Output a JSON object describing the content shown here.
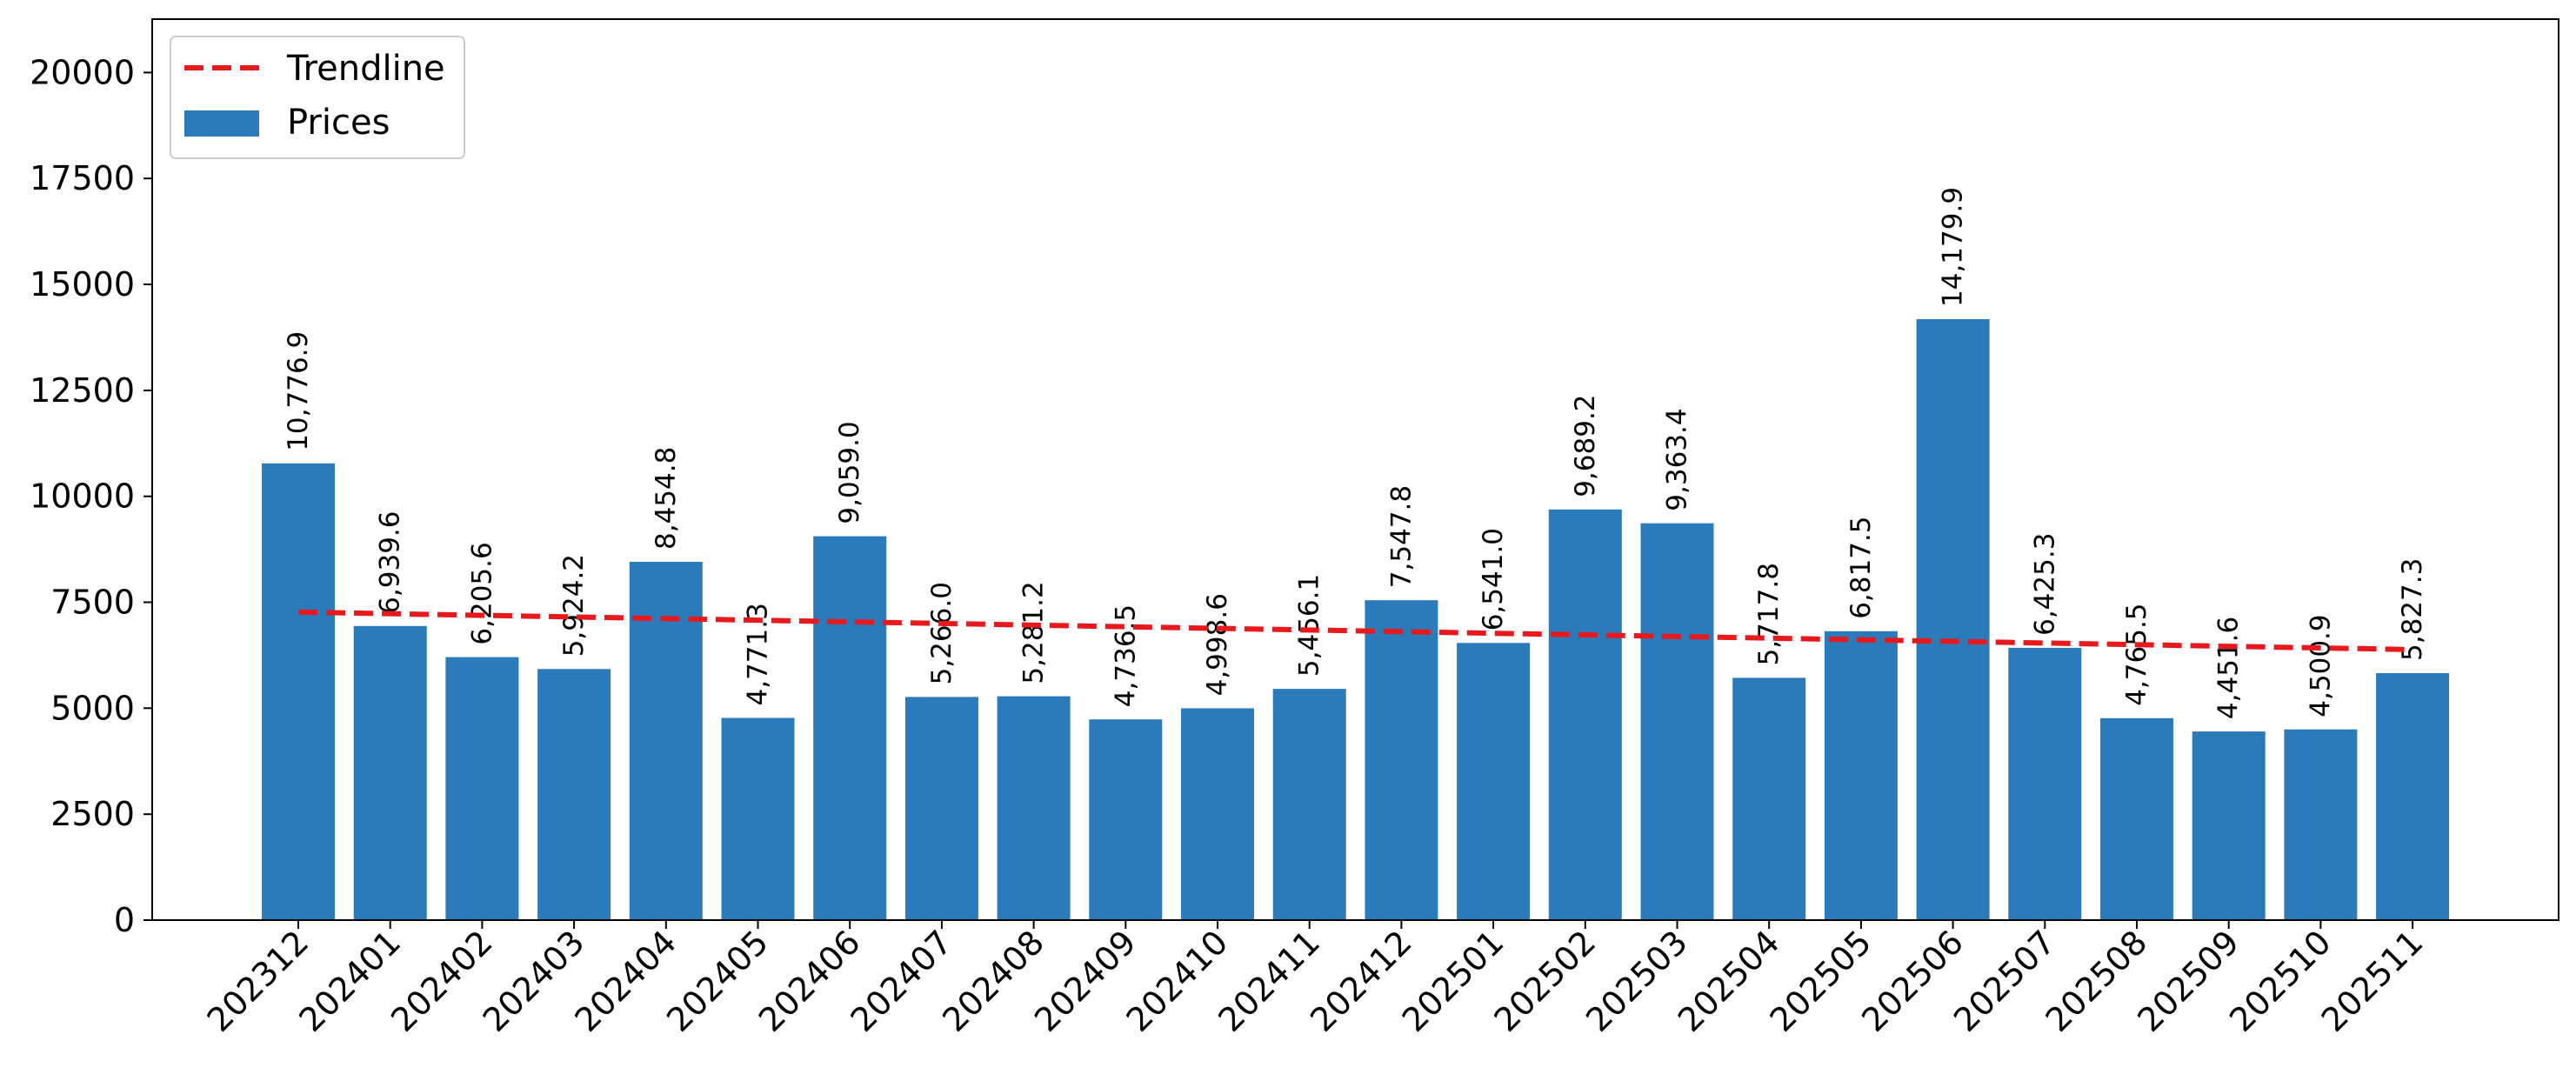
{
  "chart_data": {
    "type": "bar",
    "title": "",
    "xlabel": "",
    "ylabel": "",
    "categories": [
      "202312",
      "202401",
      "202402",
      "202403",
      "202404",
      "202405",
      "202406",
      "202407",
      "202408",
      "202409",
      "202410",
      "202411",
      "202412",
      "202501",
      "202502",
      "202503",
      "202504",
      "202505",
      "202506",
      "202507",
      "202508",
      "202509",
      "202510",
      "202511"
    ],
    "series": [
      {
        "name": "Prices",
        "kind": "bar",
        "color": "#2b7bba",
        "values": [
          10776.9,
          6939.6,
          6205.6,
          5924.2,
          8454.8,
          4771.3,
          9059.0,
          5266.0,
          5281.2,
          4736.5,
          4998.6,
          5456.1,
          7547.8,
          6541.0,
          9689.2,
          9363.4,
          5717.8,
          6817.5,
          14179.9,
          6425.3,
          4765.5,
          4451.6,
          4500.9,
          5827.3
        ],
        "data_labels": [
          "10,776.9",
          "6,939.6",
          "6,205.6",
          "5,924.2",
          "8,454.8",
          "4,771.3",
          "9,059.0",
          "5,266.0",
          "5,281.2",
          "4,736.5",
          "4,998.6",
          "5,456.1",
          "7,547.8",
          "6,541.0",
          "9,689.2",
          "9,363.4",
          "5,717.8",
          "6,817.5",
          "14,179.9",
          "6,425.3",
          "4,765.5",
          "4,451.6",
          "4,500.9",
          "5,827.3"
        ]
      },
      {
        "name": "Trendline",
        "kind": "line",
        "style": "dashed",
        "color": "#e8191c",
        "start": 7268,
        "end": 6384
      }
    ],
    "ylim": [
      0,
      21260
    ],
    "yticks": [
      0,
      2500,
      5000,
      7500,
      10000,
      12500,
      15000,
      17500,
      20000
    ],
    "grid": false,
    "legend_position": "top-left"
  }
}
